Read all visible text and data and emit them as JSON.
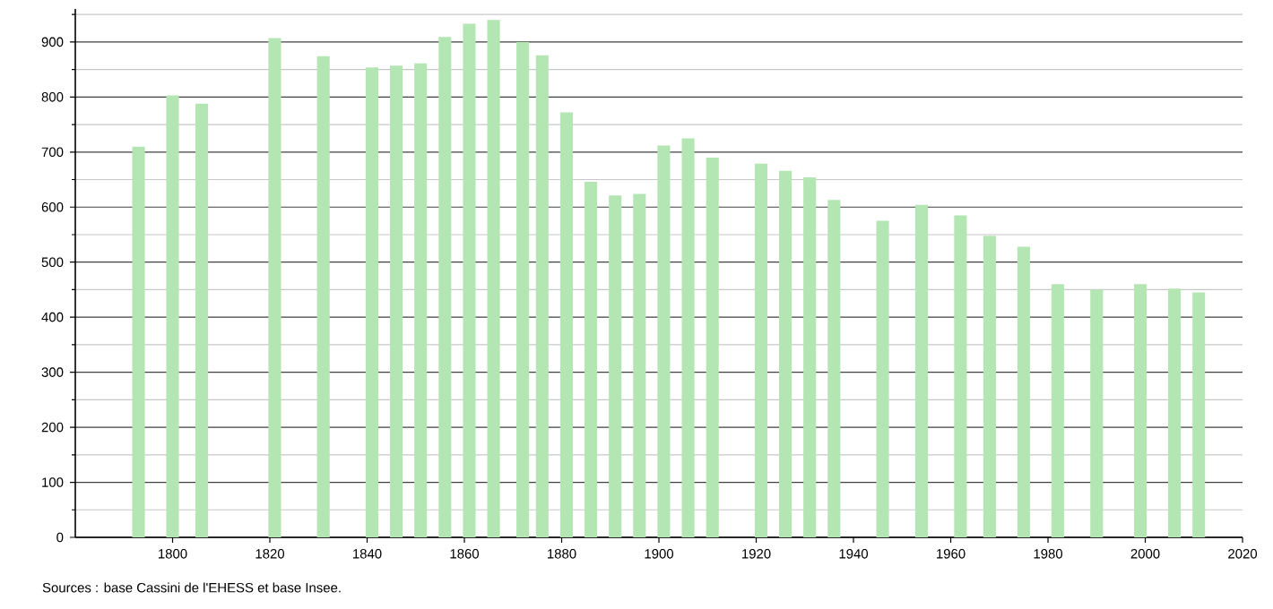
{
  "chart_data": {
    "type": "bar",
    "x": [
      1793,
      1800,
      1806,
      1821,
      1831,
      1841,
      1846,
      1851,
      1856,
      1861,
      1866,
      1872,
      1876,
      1881,
      1886,
      1891,
      1896,
      1901,
      1906,
      1911,
      1921,
      1926,
      1931,
      1936,
      1946,
      1954,
      1962,
      1968,
      1975,
      1982,
      1990,
      1999,
      2006,
      2011
    ],
    "values": [
      710,
      803,
      788,
      907,
      874,
      854,
      857,
      861,
      909,
      933,
      940,
      900,
      876,
      772,
      646,
      621,
      624,
      712,
      725,
      690,
      679,
      666,
      654,
      613,
      575,
      604,
      585,
      548,
      528,
      460,
      450,
      460,
      452,
      445
    ],
    "color": "#b4e6b4",
    "xlim": [
      1780,
      2020
    ],
    "xticks": [
      1800,
      1820,
      1840,
      1860,
      1880,
      1900,
      1920,
      1940,
      1960,
      1980,
      2000,
      2020
    ],
    "ylim": [
      0,
      960
    ],
    "yticks": [
      0,
      {
        "value": 50,
        "label": null
      },
      100,
      {
        "value": 150,
        "label": null
      },
      200,
      {
        "value": 250,
        "label": null
      },
      300,
      {
        "value": 350,
        "label": null
      },
      400,
      {
        "value": 450,
        "label": null
      },
      500,
      {
        "value": 550,
        "label": null
      },
      600,
      {
        "value": 650,
        "label": null
      },
      700,
      {
        "value": 750,
        "label": null
      },
      800,
      {
        "value": 850,
        "label": null
      },
      900,
      {
        "value": 950,
        "label": null
      }
    ],
    "grid": "y",
    "annotations": [
      "Sources : base Cassini de l'EHESS et base Insee."
    ]
  }
}
